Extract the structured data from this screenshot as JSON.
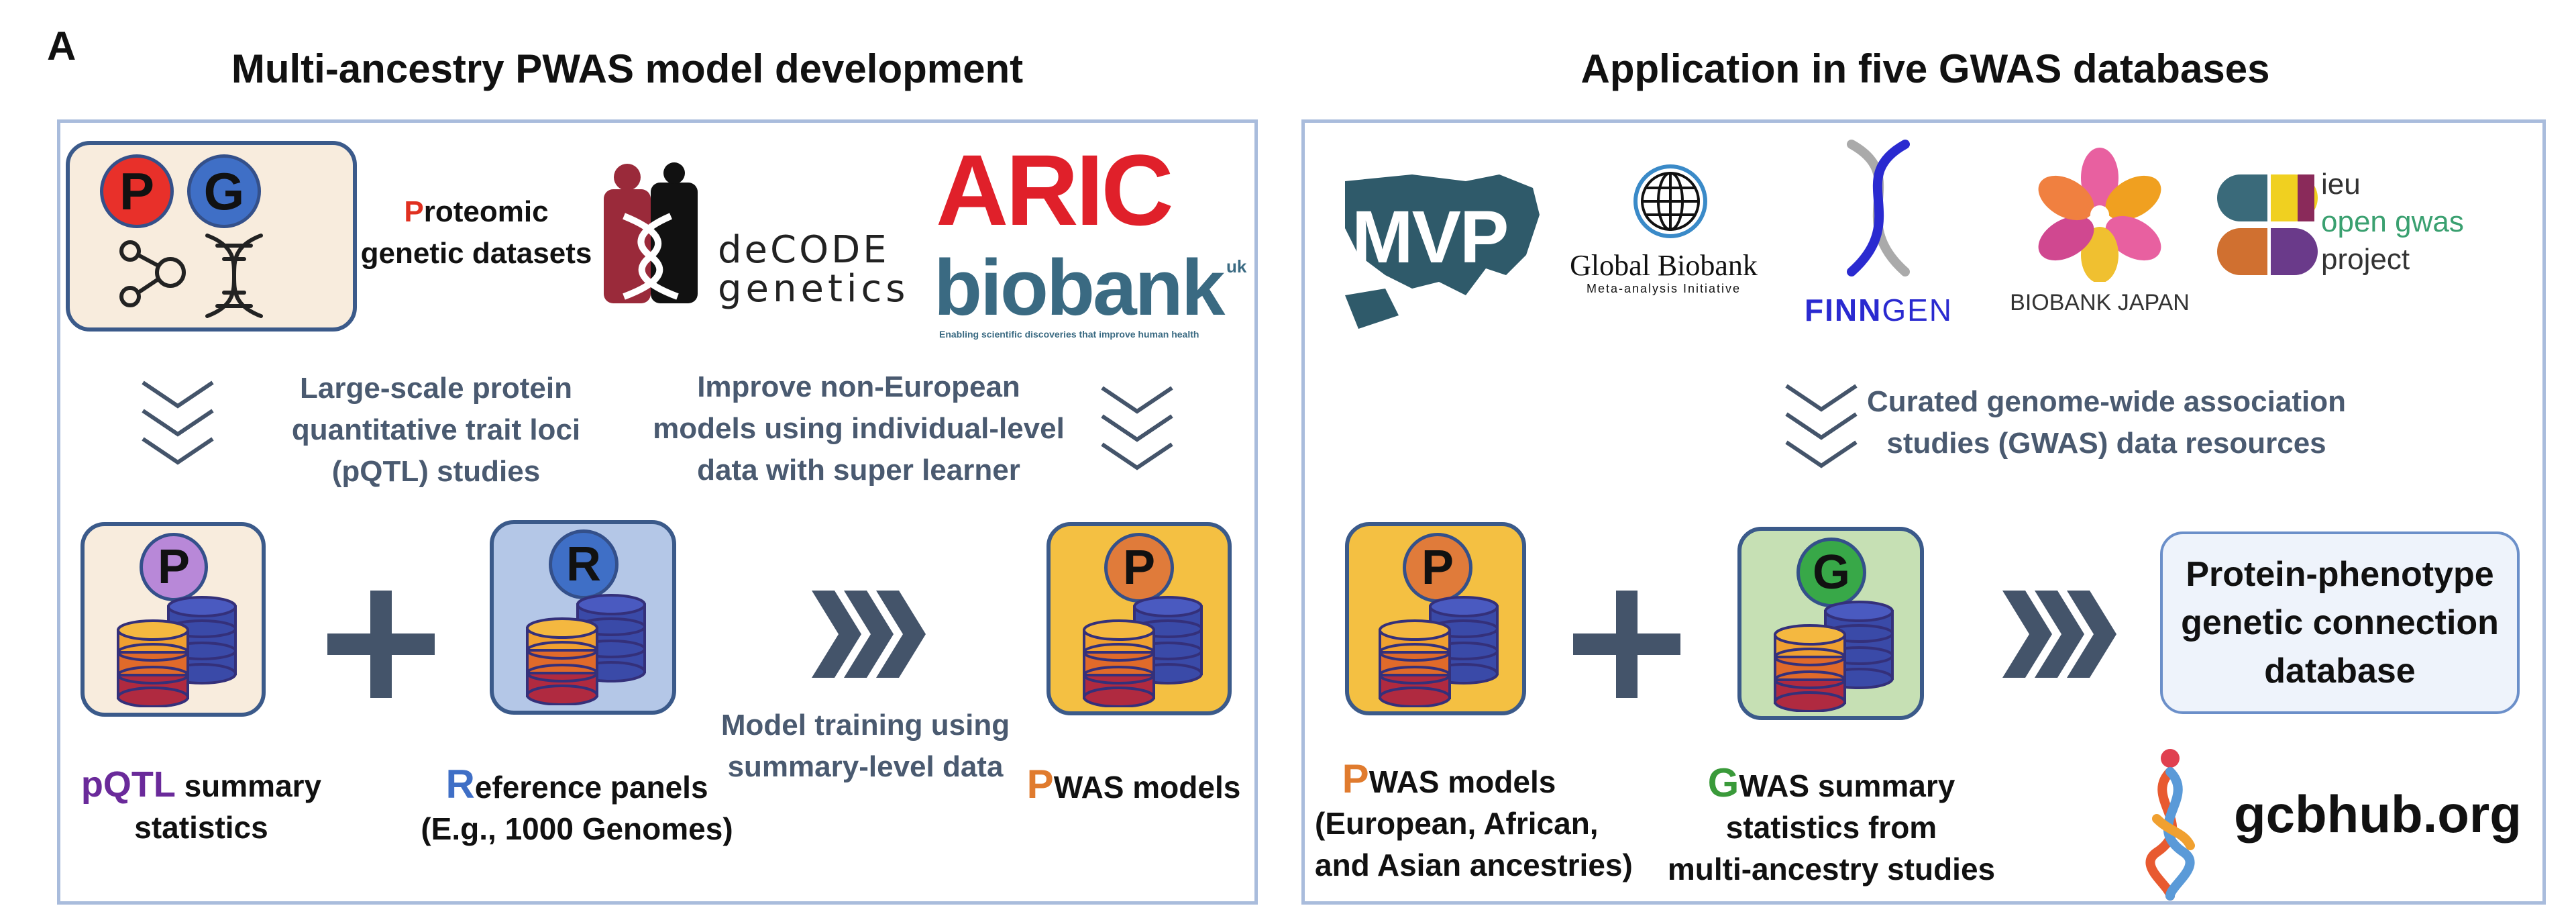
{
  "panel_letter": "A",
  "left": {
    "title": "Multi-ancestry PWAS model development",
    "top_tile_letters": [
      "P",
      "G"
    ],
    "proteomic_label": {
      "initial": "P",
      "rest_line1": "roteomic",
      "line2": "genetic datasets"
    },
    "decode_logo": {
      "line1": "deCODE",
      "line2": "genetics"
    },
    "aric_logo": "ARIC",
    "biobank_logo": {
      "name": "biobank",
      "suffix": "uk",
      "tagline": "Enabling scientific discoveries that improve human health"
    },
    "step1": [
      "Large-scale protein",
      "quantitative trait loci",
      "(pQTL) studies"
    ],
    "step2": [
      "Improve non-European",
      "models using individual-level",
      "data with super learner"
    ],
    "step3": [
      "Model training using",
      "summary-level data"
    ],
    "tile_p_letter": "P",
    "tile_r_letter": "R",
    "tile_pwas_letter": "P",
    "pqtl_label": {
      "initial": "pQTL",
      "rest_line1": " summary",
      "line2": "statistics"
    },
    "ref_label": {
      "initial": "R",
      "rest_line1": "eference panels",
      "line2": "(E.g., 1000 Genomes)"
    },
    "pwas_label": {
      "initial": "P",
      "rest": "WAS models"
    }
  },
  "right": {
    "title": "Application in five GWAS databases",
    "logos": {
      "mvp": "MVP",
      "global_biobank": {
        "line1": "Global Biobank",
        "line2": "Meta-analysis Initiative"
      },
      "finngen": {
        "part1": "FINN",
        "part2": "GEN"
      },
      "biobank_japan": "BIOBANK JAPAN",
      "ieu": [
        "ieu",
        "open gwas",
        "project"
      ]
    },
    "step": [
      "Curated genome-wide association",
      "studies (GWAS) data resources"
    ],
    "tile_p_letter": "P",
    "tile_g_letter": "G",
    "pwas_label": {
      "initial": "P",
      "rest_line1": "WAS models",
      "line2": "(European, African,",
      "line3": "and Asian ancestries)"
    },
    "gwas_label": {
      "initial": "G",
      "rest_line1": "WAS summary",
      "line2": "statistics from",
      "line3": "multi-ancestry studies"
    },
    "database_box": [
      "Protein-phenotype",
      "genetic connection",
      "database"
    ],
    "website": "gcbhub.org"
  },
  "colors": {
    "panel_border": "#a9bcdc",
    "tile_cream": "#f8ecdd",
    "tile_blue": "#b4c7e7",
    "tile_yellow": "#f4c042",
    "tile_green": "#c6e0b4",
    "badge_red": "#e8302a",
    "badge_blue": "#3f6fc6",
    "badge_purple": "#b888d8",
    "badge_orange": "#e07b3a",
    "badge_green": "#38a848",
    "plus": "#44546a"
  }
}
